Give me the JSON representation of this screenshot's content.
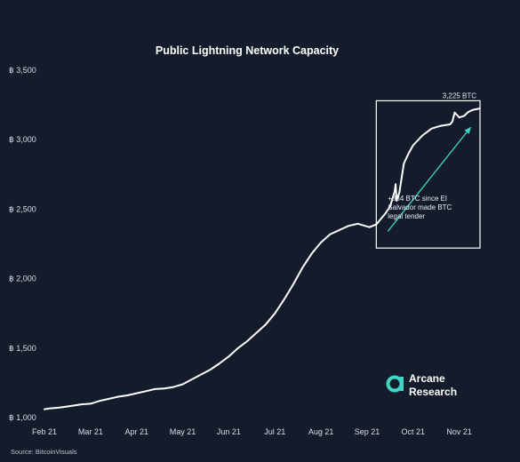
{
  "chart_data": {
    "type": "line",
    "title": "Public Lightning Network Capacity",
    "xlabel": "",
    "ylabel": "",
    "x_ticks": [
      "Feb 21",
      "Mar 21",
      "Apr 21",
      "May 21",
      "Jun 21",
      "Jul 21",
      "Aug 21",
      "Sep 21",
      "Oct 21",
      "Nov 21"
    ],
    "y_ticks": [
      "฿ 1,000",
      "฿ 1,500",
      "฿ 2,000",
      "฿ 2,500",
      "฿ 3,000",
      "฿ 3,500"
    ],
    "ylim": [
      1000,
      3500
    ],
    "xlim": [
      0,
      9.45
    ],
    "grid": false,
    "series": [
      {
        "color": "#ffffff",
        "x": [
          0,
          0.1,
          0.25,
          0.4,
          0.6,
          0.8,
          1.0,
          1.2,
          1.4,
          1.6,
          1.8,
          2.0,
          2.2,
          2.4,
          2.6,
          2.8,
          3.0,
          3.2,
          3.4,
          3.6,
          3.8,
          4.0,
          4.2,
          4.4,
          4.6,
          4.8,
          5.0,
          5.2,
          5.4,
          5.6,
          5.8,
          6.0,
          6.2,
          6.4,
          6.6,
          6.8,
          7.0,
          7.05,
          7.2,
          7.4,
          7.5,
          7.6,
          7.62,
          7.64,
          7.7,
          7.8,
          7.9,
          8.0,
          8.2,
          8.4,
          8.6,
          8.8,
          8.85,
          8.9,
          9.0,
          9.1,
          9.2,
          9.3,
          9.45
        ],
        "values": [
          1060,
          1065,
          1070,
          1075,
          1085,
          1095,
          1100,
          1120,
          1135,
          1150,
          1160,
          1175,
          1190,
          1205,
          1210,
          1220,
          1240,
          1275,
          1310,
          1345,
          1390,
          1440,
          1500,
          1550,
          1610,
          1670,
          1750,
          1850,
          1960,
          2080,
          2180,
          2260,
          2320,
          2350,
          2380,
          2395,
          2375,
          2370,
          2390,
          2470,
          2520,
          2630,
          2680,
          2560,
          2620,
          2830,
          2900,
          2960,
          3030,
          3080,
          3100,
          3110,
          3130,
          3195,
          3160,
          3170,
          3200,
          3215,
          3225
        ]
      }
    ],
    "annotations": [
      {
        "text": "3,225 BTC"
      },
      {
        "lines": [
          "+834 BTC since El",
          "Salvador made BTC",
          "legal tender"
        ]
      }
    ],
    "highlight_box": {
      "x_from": 7.2,
      "x_to": 9.45,
      "y_from": 2220,
      "y_to": 3280,
      "color": "#ffffff"
    },
    "arrow": {
      "from": {
        "x": 7.45,
        "y": 2340
      },
      "to": {
        "x": 9.25,
        "y": 3090
      },
      "color": "#3dd6c8"
    },
    "source": "Source: BitcoinVisuals",
    "logo": {
      "line1": "Arcane",
      "line2": "Research",
      "color": "#3dd6c8"
    }
  }
}
